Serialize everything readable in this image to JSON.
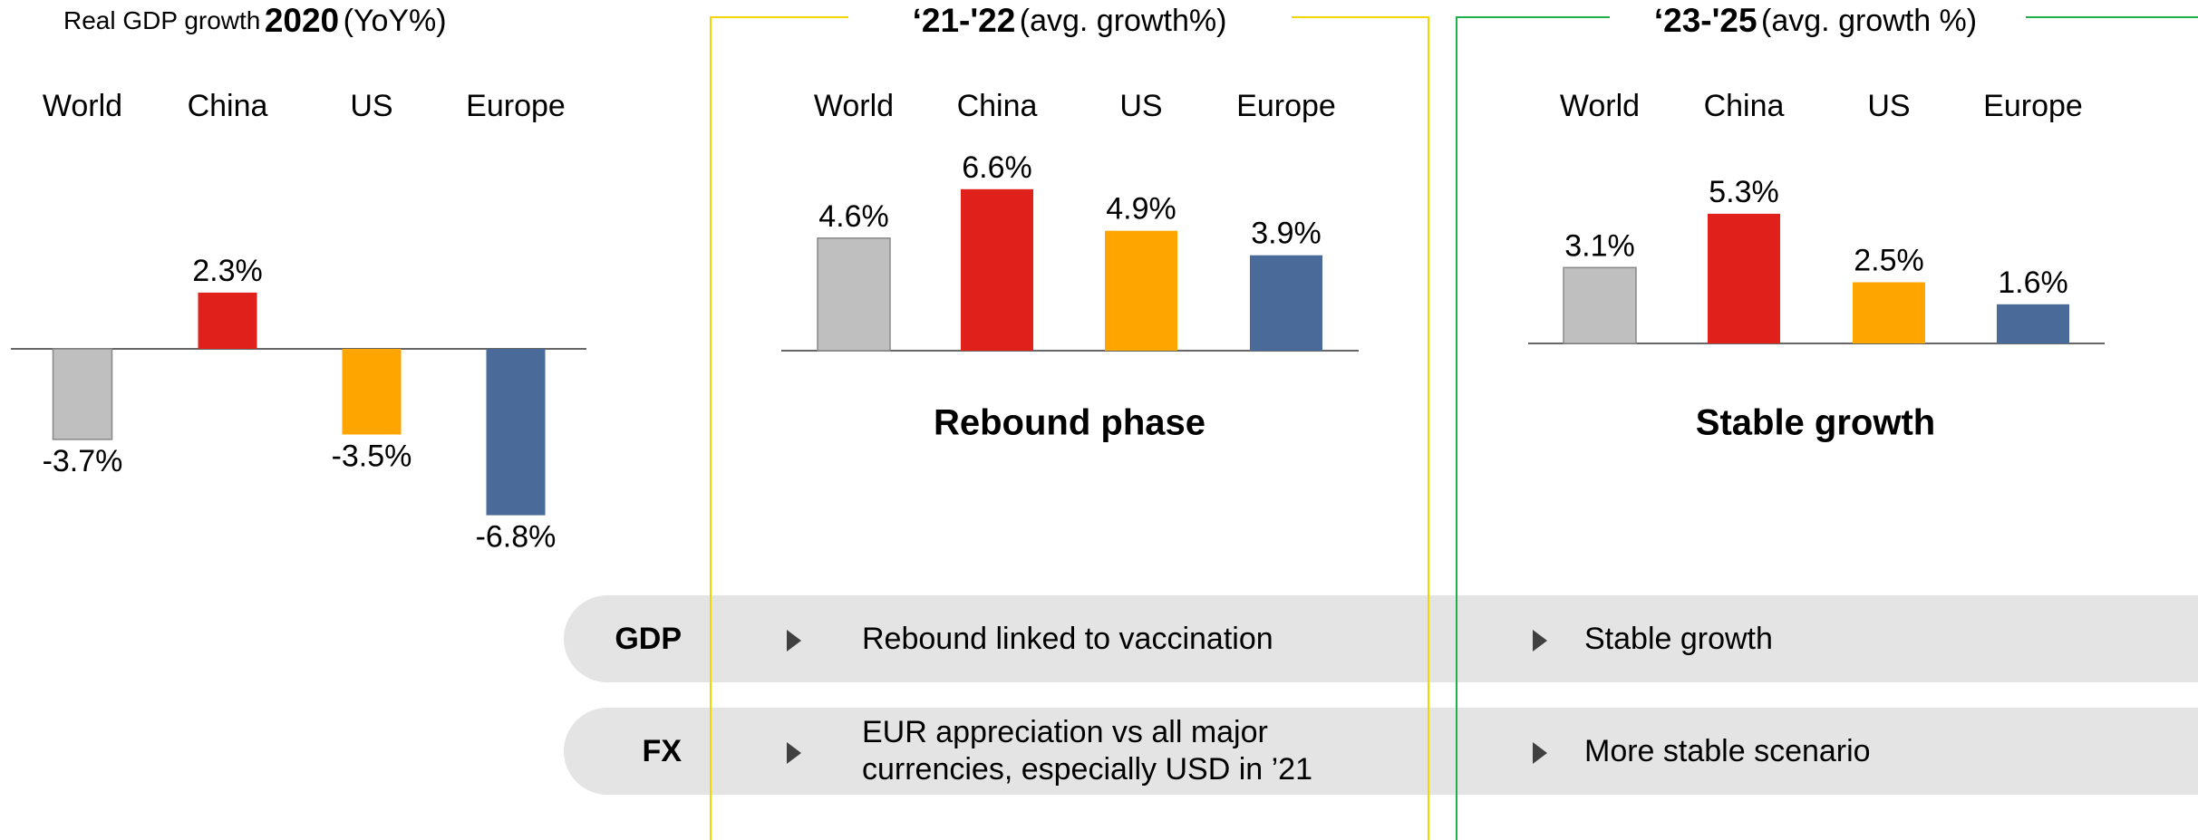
{
  "chart_data": [
    {
      "type": "bar",
      "title": "Real GDP growth",
      "period": "2020",
      "unit": "(YoY%)",
      "categories": [
        "World",
        "China",
        "US",
        "Europe"
      ],
      "values": [
        -3.7,
        2.3,
        -3.5,
        -6.8
      ],
      "value_labels": [
        "-3.7%",
        "2.3%",
        "-3.5%",
        "-6.8%"
      ],
      "colors": [
        "#bfbfbf",
        "#e0201b",
        "#ffa500",
        "#4a6a9a"
      ]
    },
    {
      "type": "bar",
      "period": "‘21-'22",
      "unit": "(avg. growth%)",
      "subtitle": "Rebound phase",
      "categories": [
        "World",
        "China",
        "US",
        "Europe"
      ],
      "values": [
        4.6,
        6.6,
        4.9,
        3.9
      ],
      "value_labels": [
        "4.6%",
        "6.6%",
        "4.9%",
        "3.9%"
      ],
      "colors": [
        "#bfbfbf",
        "#e0201b",
        "#ffa500",
        "#4a6a9a"
      ],
      "frame_color": "#f2d600"
    },
    {
      "type": "bar",
      "period": "‘23-'25",
      "unit": "(avg. growth %)",
      "subtitle": "Stable growth",
      "categories": [
        "World",
        "China",
        "US",
        "Europe"
      ],
      "values": [
        3.1,
        5.3,
        2.5,
        1.6
      ],
      "value_labels": [
        "3.1%",
        "5.3%",
        "2.5%",
        "1.6%"
      ],
      "colors": [
        "#bfbfbf",
        "#e0201b",
        "#ffa500",
        "#4a6a9a"
      ],
      "frame_color": "#1db04b"
    }
  ],
  "rows": [
    {
      "label": "GDP",
      "items": [
        "Rebound linked to vaccination",
        "Stable growth"
      ]
    },
    {
      "label": "FX",
      "items": [
        "EUR appreciation vs all major currencies, especially USD in ’21",
        "More stable scenario"
      ]
    }
  ]
}
